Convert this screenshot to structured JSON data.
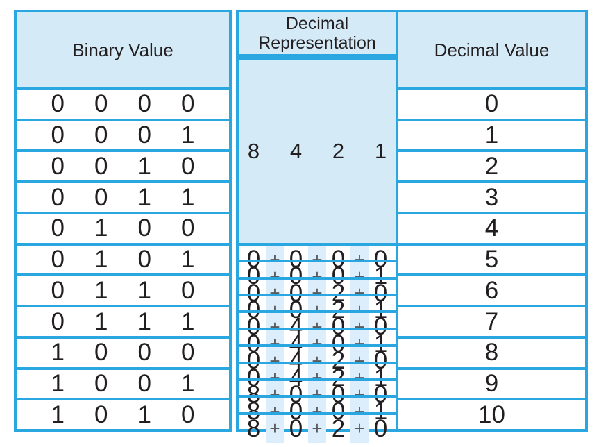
{
  "table": {
    "plus_sign": "+",
    "columns": {
      "binary": {
        "header": "Binary Value"
      },
      "representation": {
        "header": "Decimal Representation",
        "place_values": [
          "8",
          "4",
          "2",
          "1"
        ]
      },
      "decimal": {
        "header": "Decimal Value"
      }
    },
    "rows": [
      {
        "binary": [
          "0",
          "0",
          "0",
          "0"
        ],
        "terms": [
          "0",
          "0",
          "0",
          "0"
        ],
        "decimal": "0"
      },
      {
        "binary": [
          "0",
          "0",
          "0",
          "1"
        ],
        "terms": [
          "0",
          "0",
          "0",
          "1"
        ],
        "decimal": "1"
      },
      {
        "binary": [
          "0",
          "0",
          "1",
          "0"
        ],
        "terms": [
          "0",
          "0",
          "2",
          "0"
        ],
        "decimal": "2"
      },
      {
        "binary": [
          "0",
          "0",
          "1",
          "1"
        ],
        "terms": [
          "0",
          "0",
          "2",
          "1"
        ],
        "decimal": "3"
      },
      {
        "binary": [
          "0",
          "1",
          "0",
          "0"
        ],
        "terms": [
          "0",
          "4",
          "0",
          "0"
        ],
        "decimal": "4"
      },
      {
        "binary": [
          "0",
          "1",
          "0",
          "1"
        ],
        "terms": [
          "0",
          "4",
          "0",
          "1"
        ],
        "decimal": "5"
      },
      {
        "binary": [
          "0",
          "1",
          "1",
          "0"
        ],
        "terms": [
          "0",
          "4",
          "2",
          "0"
        ],
        "decimal": "6"
      },
      {
        "binary": [
          "0",
          "1",
          "1",
          "1"
        ],
        "terms": [
          "0",
          "4",
          "2",
          "1"
        ],
        "decimal": "7"
      },
      {
        "binary": [
          "1",
          "0",
          "0",
          "0"
        ],
        "terms": [
          "8",
          "0",
          "0",
          "0"
        ],
        "decimal": "8"
      },
      {
        "binary": [
          "1",
          "0",
          "0",
          "1"
        ],
        "terms": [
          "8",
          "0",
          "0",
          "1"
        ],
        "decimal": "9"
      },
      {
        "binary": [
          "1",
          "0",
          "1",
          "0"
        ],
        "terms": [
          "8",
          "0",
          "2",
          "0"
        ],
        "decimal": "10"
      }
    ]
  },
  "colors": {
    "border": "#2aa7e0",
    "header_fill": "#d5eaf7",
    "stripe_fill": "#dceefb",
    "text": "#231f20",
    "plus": "#5a5b5e"
  }
}
